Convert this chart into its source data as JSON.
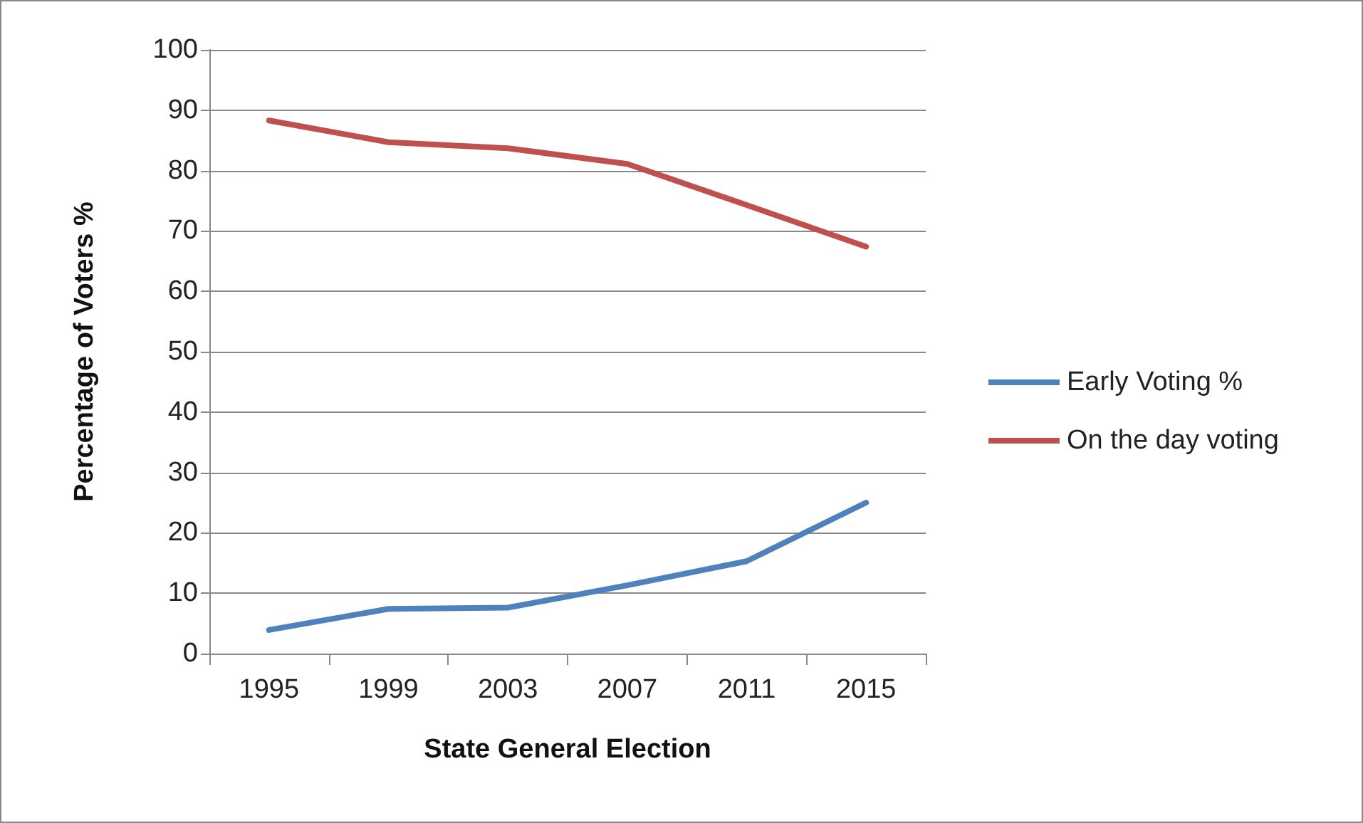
{
  "chart_data": {
    "type": "line",
    "xlabel": "State General Election",
    "ylabel": "Percentage of Voters %",
    "categories": [
      "1995",
      "1999",
      "2003",
      "2007",
      "2011",
      "2015"
    ],
    "series": [
      {
        "name": "Early Voting %",
        "color": "#4f81bd",
        "values": [
          3.9,
          7.4,
          7.6,
          11.3,
          15.3,
          25
        ]
      },
      {
        "name": "On the day voting",
        "color": "#c0504d",
        "values": [
          88.3,
          84.7,
          83.7,
          81.1,
          74.3,
          67.4
        ]
      }
    ],
    "ylim": [
      0,
      100
    ],
    "yticks": [
      0,
      10,
      20,
      30,
      40,
      50,
      60,
      70,
      80,
      90,
      100
    ],
    "grid": "y",
    "legend": "right",
    "marker": "none",
    "line_style": "solid"
  }
}
